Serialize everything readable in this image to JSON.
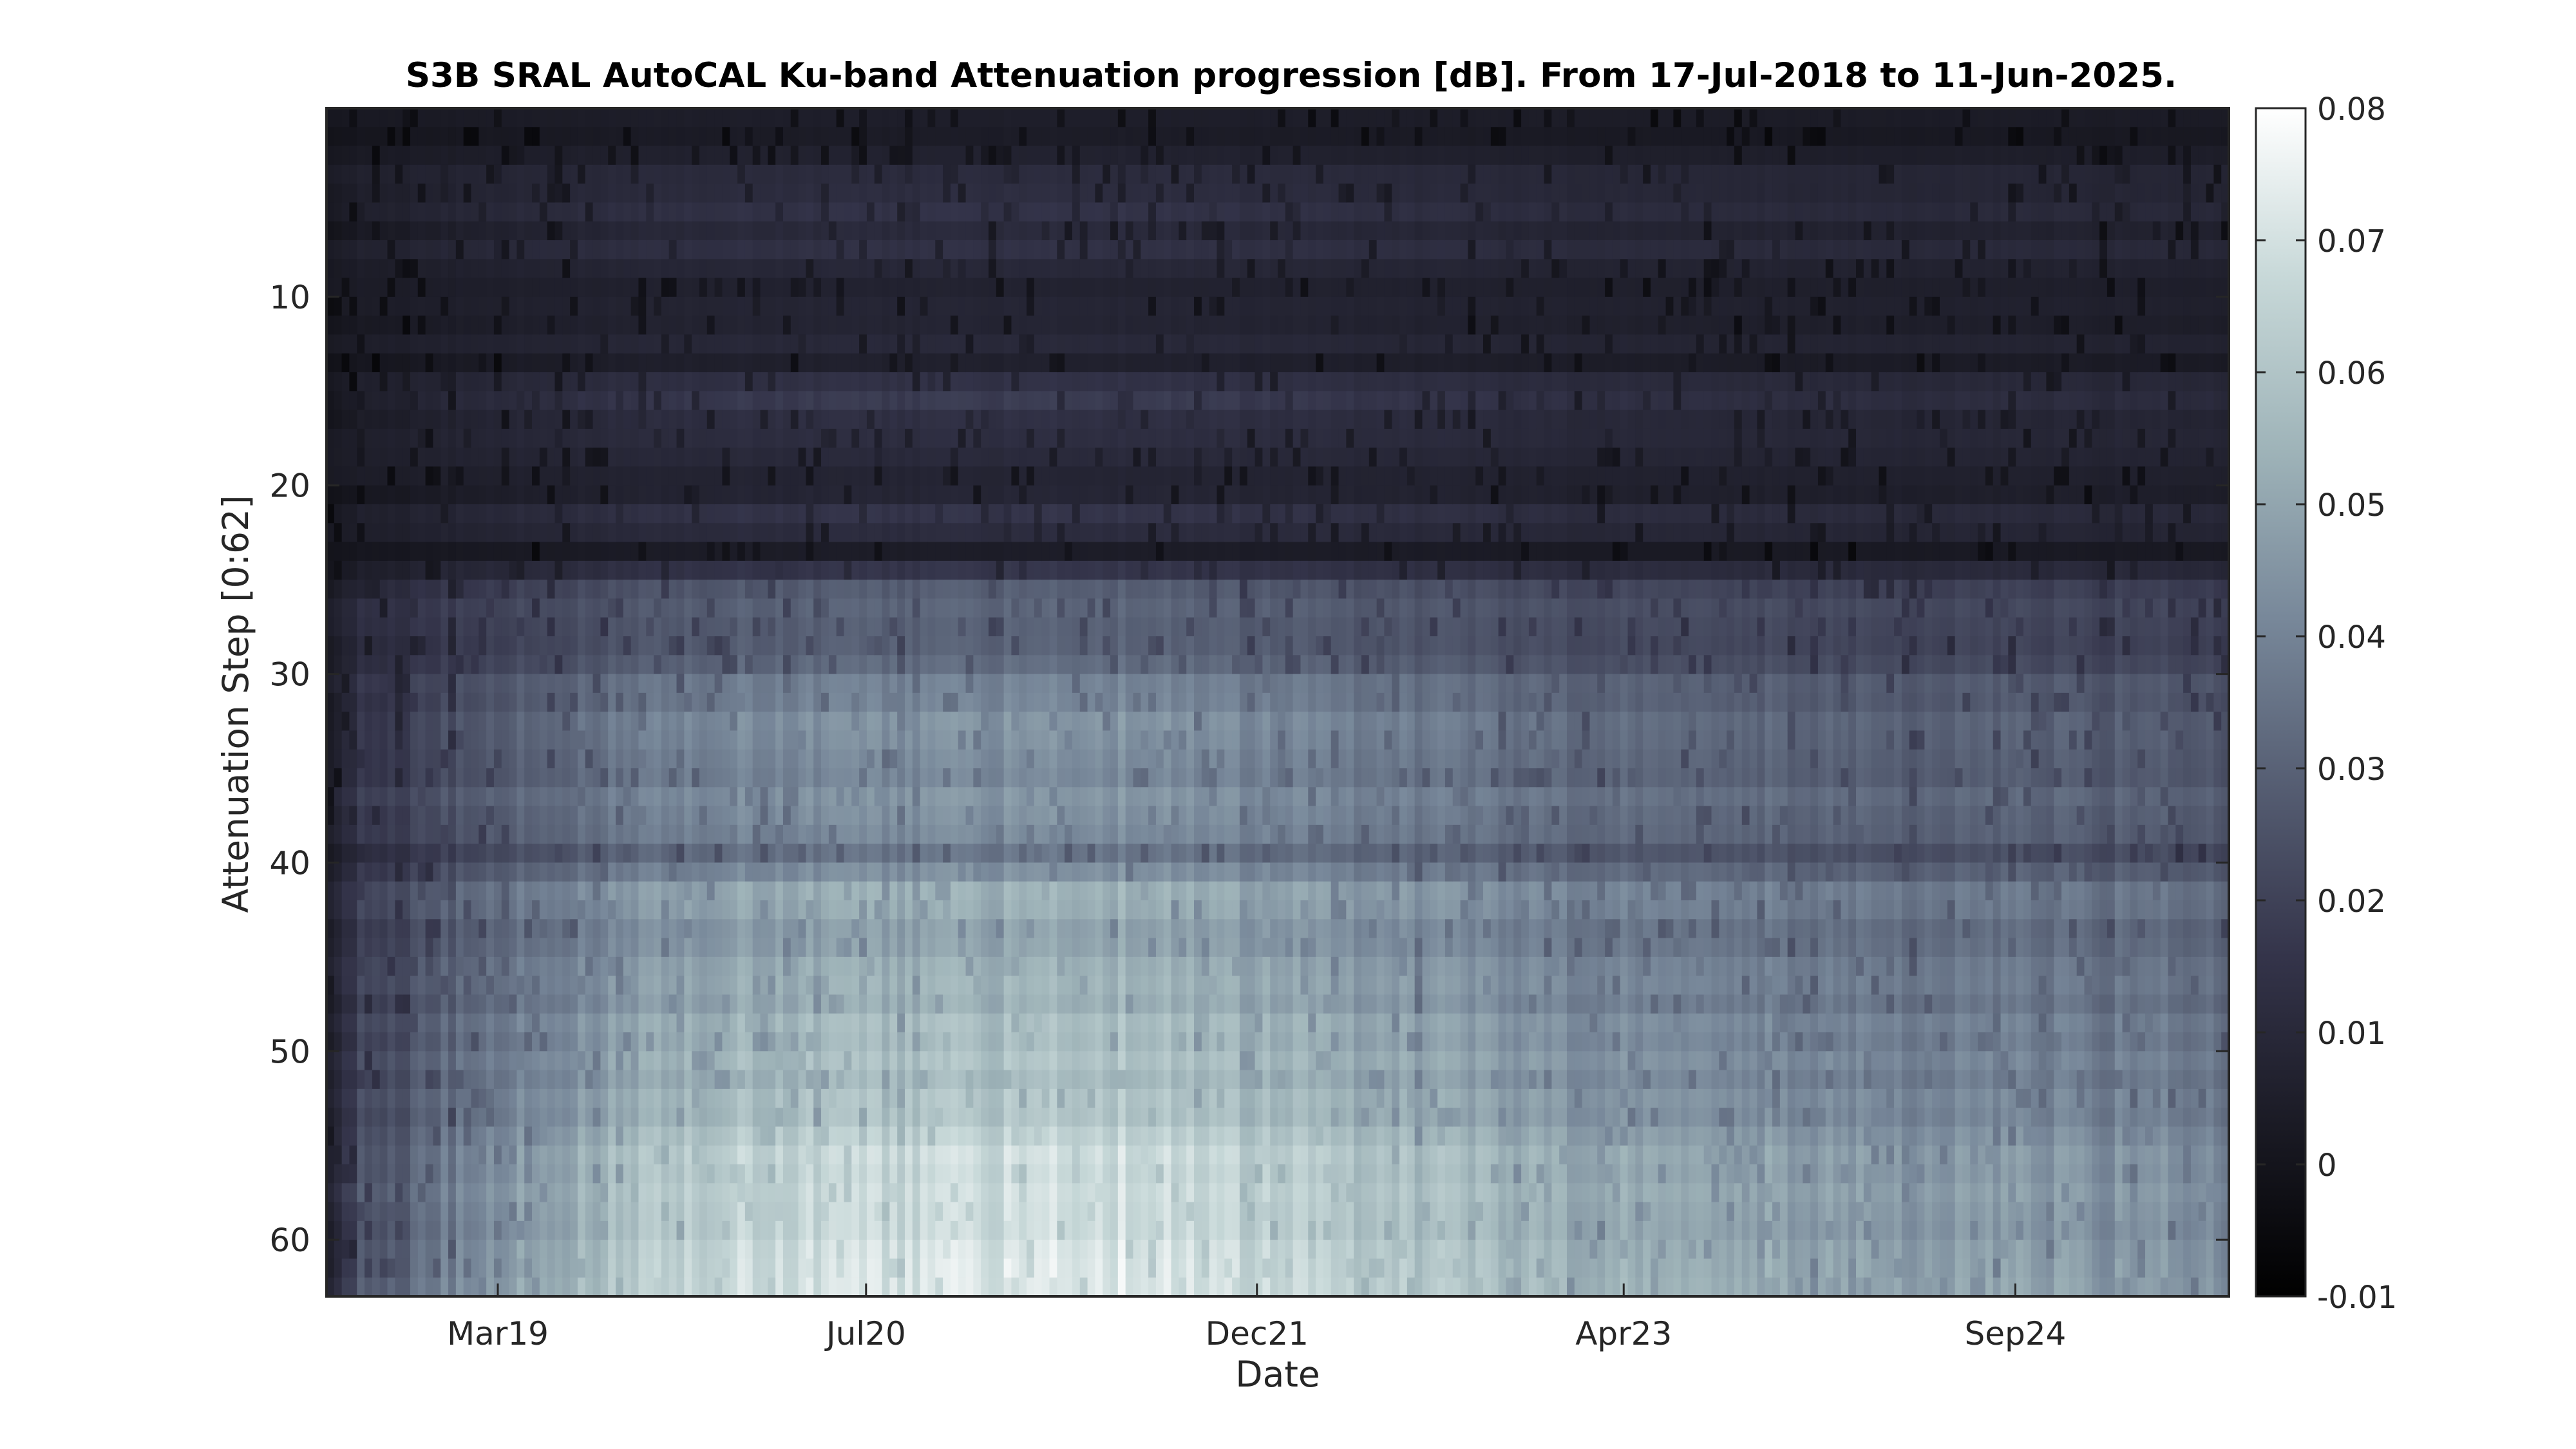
{
  "chart_data": {
    "type": "heatmap",
    "title": "S3B SRAL AutoCAL Ku-band Attenuation progression [dB]. From 17-Jul-2018 to 11-Jun-2025.",
    "xlabel": "Date",
    "ylabel": "Attenuation Step [0:62]",
    "x_start": "2018-07-17",
    "x_end": "2025-06-11",
    "x_ticks": [
      {
        "label": "Mar19",
        "date": "2019-03-01"
      },
      {
        "label": "Jul20",
        "date": "2020-07-01"
      },
      {
        "label": "Dec21",
        "date": "2021-12-01"
      },
      {
        "label": "Apr23",
        "date": "2023-04-01"
      },
      {
        "label": "Sep24",
        "date": "2024-09-01"
      }
    ],
    "y_range": [
      0,
      63
    ],
    "y_reversed": true,
    "y_ticks": [
      10,
      20,
      30,
      40,
      50,
      60
    ],
    "colorbar": {
      "range": [
        -0.01,
        0.08
      ],
      "ticks": [
        "0.08",
        "0.07",
        "0.06",
        "0.05",
        "0.04",
        "0.03",
        "0.02",
        "0.01",
        "0",
        "-0.01"
      ],
      "colormap": "bone",
      "colors": [
        "#000000",
        "#1a1a24",
        "#34344a",
        "#555d72",
        "#78889a",
        "#9fb4b9",
        "#c7d8d8",
        "#ffffff"
      ]
    },
    "grid": false,
    "step_profile": [
      {
        "step": 1,
        "value": 0.004
      },
      {
        "step": 3,
        "value": 0.006
      },
      {
        "step": 6,
        "value": 0.014
      },
      {
        "step": 8,
        "value": 0.012
      },
      {
        "step": 10,
        "value": 0.005
      },
      {
        "step": 12,
        "value": 0.009
      },
      {
        "step": 14,
        "value": 0.008
      },
      {
        "step": 16,
        "value": 0.02
      },
      {
        "step": 18,
        "value": 0.011
      },
      {
        "step": 20,
        "value": 0.006
      },
      {
        "step": 22,
        "value": 0.016
      },
      {
        "step": 24,
        "value": 0.005
      },
      {
        "step": 26,
        "value": 0.03
      },
      {
        "step": 28,
        "value": 0.028
      },
      {
        "step": 30,
        "value": 0.034
      },
      {
        "step": 33,
        "value": 0.048
      },
      {
        "step": 36,
        "value": 0.042
      },
      {
        "step": 38,
        "value": 0.045
      },
      {
        "step": 40,
        "value": 0.038
      },
      {
        "step": 42,
        "value": 0.052
      },
      {
        "step": 45,
        "value": 0.05
      },
      {
        "step": 48,
        "value": 0.056
      },
      {
        "step": 50,
        "value": 0.06
      },
      {
        "step": 52,
        "value": 0.058
      },
      {
        "step": 54,
        "value": 0.062
      },
      {
        "step": 56,
        "value": 0.07
      },
      {
        "step": 58,
        "value": 0.067
      },
      {
        "step": 60,
        "value": 0.072
      },
      {
        "step": 62,
        "value": 0.075
      },
      {
        "step": 63,
        "value": 0.072
      }
    ],
    "time_trend": [
      {
        "date": "2018-07-17",
        "factor": 0.15
      },
      {
        "date": "2018-09-01",
        "factor": 0.35
      },
      {
        "date": "2019-04-01",
        "factor": 0.7
      },
      {
        "date": "2020-01-01",
        "factor": 0.95
      },
      {
        "date": "2021-06-01",
        "factor": 1.0
      },
      {
        "date": "2022-06-01",
        "factor": 0.85
      },
      {
        "date": "2023-06-01",
        "factor": 0.72
      },
      {
        "date": "2025-06-11",
        "factor": 0.62
      }
    ]
  }
}
